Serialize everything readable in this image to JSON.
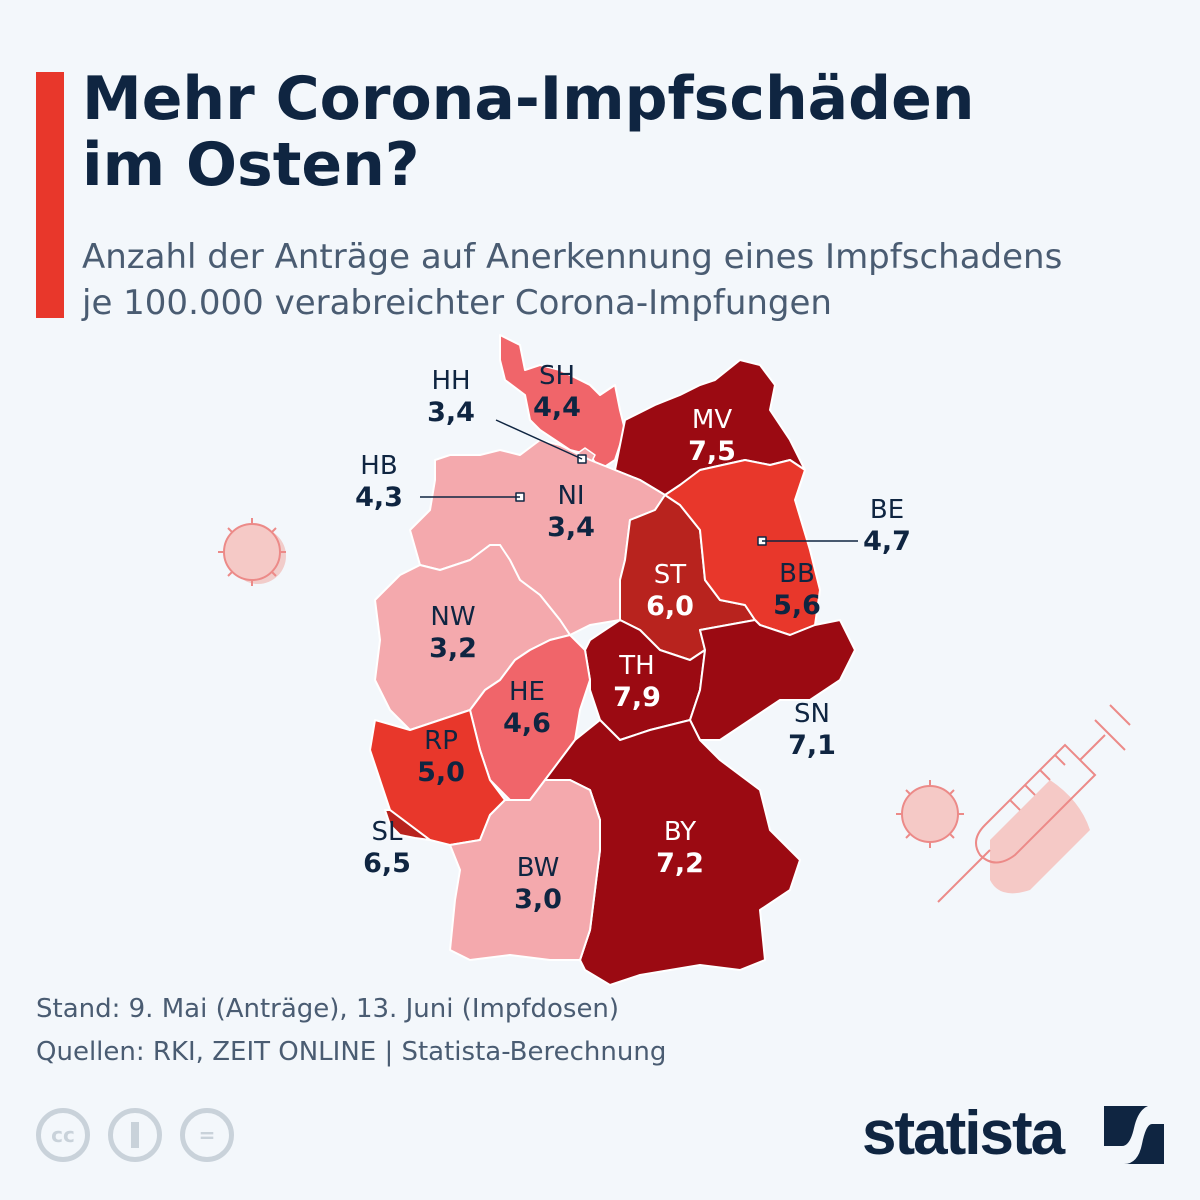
{
  "title": "Mehr Corona-Impfschäden im Osten?",
  "title_lines": [
    "Mehr Corona-Impfschäden",
    "im Osten?"
  ],
  "subtitle_lines": [
    "Anzahl der Anträge auf Anerkennung eines Impfschadens",
    "je 100.000 verabreichter Corona-Impfungen"
  ],
  "colors": {
    "accent": "#e8372b",
    "navy": "#0f2541",
    "scale": [
      "#f4a9ad",
      "#f0656a",
      "#e8372b",
      "#b8231e",
      "#9b0a12"
    ]
  },
  "states": [
    {
      "code": "SH",
      "value": "4,4",
      "color": "#f0656a"
    },
    {
      "code": "HH",
      "value": "3,4",
      "color": "#f4a9ad"
    },
    {
      "code": "MV",
      "value": "7,5",
      "color": "#9b0a12"
    },
    {
      "code": "HB",
      "value": "4,3",
      "color": "#f0656a"
    },
    {
      "code": "NI",
      "value": "3,4",
      "color": "#f4a9ad"
    },
    {
      "code": "BE",
      "value": "4,7",
      "color": "#f0656a"
    },
    {
      "code": "ST",
      "value": "6,0",
      "color": "#b8231e"
    },
    {
      "code": "BB",
      "value": "5,6",
      "color": "#e8372b"
    },
    {
      "code": "NW",
      "value": "3,2",
      "color": "#f4a9ad"
    },
    {
      "code": "TH",
      "value": "7,9",
      "color": "#9b0a12"
    },
    {
      "code": "HE",
      "value": "4,6",
      "color": "#f0656a"
    },
    {
      "code": "SN",
      "value": "7,1",
      "color": "#9b0a12"
    },
    {
      "code": "RP",
      "value": "5,0",
      "color": "#e8372b"
    },
    {
      "code": "SL",
      "value": "6,5",
      "color": "#b8231e"
    },
    {
      "code": "BY",
      "value": "7,2",
      "color": "#9b0a12"
    },
    {
      "code": "BW",
      "value": "3,0",
      "color": "#f4a9ad"
    }
  ],
  "footer": {
    "stand": "Stand: 9. Mai (Anträge), 13. Juni (Impfdosen)",
    "sources": "Quellen: RKI, ZEIT ONLINE | Statista-Berechnung"
  },
  "license_icons": [
    "cc-icon",
    "by-icon",
    "nd-icon"
  ],
  "license_text": {
    "cc": "cc",
    "nd": "="
  },
  "brand": "statista"
}
